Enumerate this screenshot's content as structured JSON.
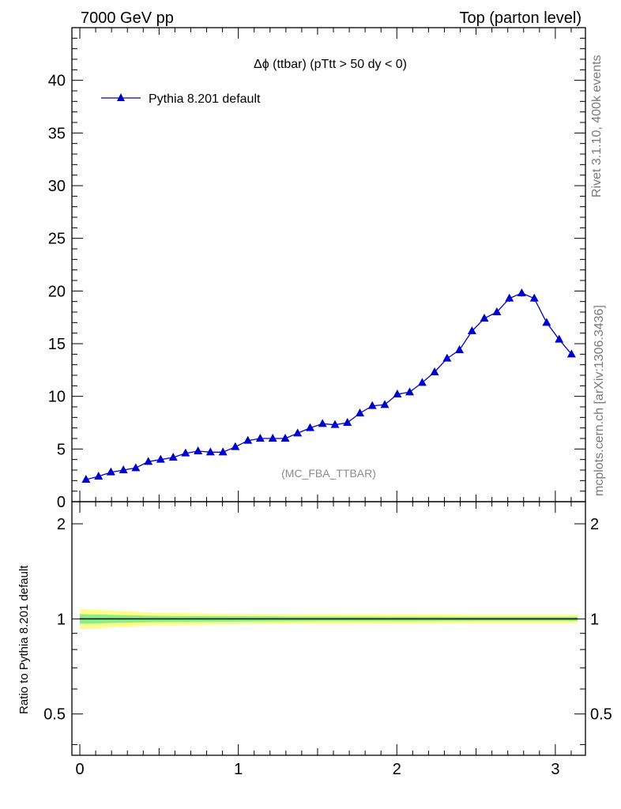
{
  "header": {
    "left": "7000 GeV pp",
    "right": "Top (parton level)"
  },
  "side_labels": {
    "upper": "Rivet 3.1.10,  400k events",
    "lower": "mcplots.cern.ch [arXiv:1306.3436]"
  },
  "colors": {
    "series": "#0000cc",
    "band_outer": "#ffff88",
    "band_inner": "#88ee88"
  },
  "chart_data": [
    {
      "type": "line",
      "title": "Δϕ (ttbar) (pTtt > 50 dy < 0)",
      "annotation": "(MC_FBA_TTBAR)",
      "xlim": [
        -0.05,
        3.19
      ],
      "ylim": [
        0,
        45
      ],
      "yticks": [
        0,
        5,
        10,
        15,
        20,
        25,
        30,
        35,
        40
      ],
      "legend": {
        "placement": "top-left"
      },
      "series": [
        {
          "name": "Pythia 8.201 default",
          "marker": "triangle",
          "x": [
            0.039,
            0.118,
            0.196,
            0.275,
            0.353,
            0.432,
            0.51,
            0.589,
            0.667,
            0.746,
            0.824,
            0.903,
            0.981,
            1.06,
            1.138,
            1.217,
            1.296,
            1.374,
            1.453,
            1.531,
            1.61,
            1.688,
            1.767,
            1.845,
            1.924,
            2.003,
            2.081,
            2.16,
            2.238,
            2.317,
            2.395,
            2.474,
            2.552,
            2.631,
            2.71,
            2.788,
            2.867,
            2.945,
            3.024,
            3.102
          ],
          "y": [
            2.1,
            2.4,
            2.8,
            3.0,
            3.2,
            3.8,
            4.0,
            4.2,
            4.6,
            4.8,
            4.7,
            4.7,
            5.2,
            5.8,
            6.0,
            6.0,
            6.0,
            6.5,
            7.0,
            7.4,
            7.3,
            7.5,
            8.4,
            9.1,
            9.2,
            10.2,
            10.4,
            11.3,
            12.3,
            13.6,
            14.4,
            16.2,
            17.4,
            18.0,
            19.3,
            19.8,
            19.3,
            17.0,
            15.4,
            14.0
          ],
          "err": [
            0.1,
            0.12,
            0.12,
            0.13,
            0.13,
            0.14,
            0.14,
            0.15,
            0.15,
            0.15,
            0.15,
            0.15,
            0.16,
            0.17,
            0.17,
            0.17,
            0.17,
            0.18,
            0.18,
            0.19,
            0.19,
            0.19,
            0.2,
            0.21,
            0.21,
            0.22,
            0.22,
            0.24,
            0.25,
            0.26,
            0.27,
            0.29,
            0.3,
            0.31,
            0.32,
            0.33,
            0.32,
            0.3,
            0.28,
            0.27
          ]
        }
      ]
    },
    {
      "type": "area",
      "ylabel": "Ratio to Pythia 8.201 default",
      "xlim": [
        -0.05,
        3.19
      ],
      "ylim": [
        0.37,
        2.35
      ],
      "log_y": true,
      "yticks": [
        0.5,
        1,
        2
      ],
      "xticks": [
        0,
        1,
        2,
        3
      ],
      "reference": 1,
      "bands": {
        "x": [
          0.0,
          0.5,
          1.0,
          1.5,
          2.0,
          2.5,
          3.0,
          3.14
        ],
        "outer_low": [
          0.93,
          0.955,
          0.962,
          0.966,
          0.968,
          0.97,
          0.97,
          0.97
        ],
        "outer_high": [
          1.075,
          1.045,
          1.038,
          1.034,
          1.032,
          1.03,
          1.03,
          1.03
        ],
        "inner_low": [
          0.965,
          0.978,
          0.981,
          0.983,
          0.984,
          0.985,
          0.985,
          0.985
        ],
        "inner_high": [
          1.035,
          1.022,
          1.019,
          1.017,
          1.016,
          1.015,
          1.015,
          1.015
        ]
      }
    }
  ]
}
